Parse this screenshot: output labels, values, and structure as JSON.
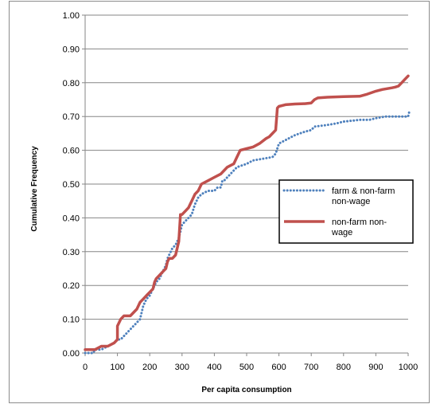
{
  "chart_data": {
    "type": "line",
    "title": "",
    "xlabel": "Per capita consumption",
    "ylabel": "Cumulative Frequency",
    "xlim": [
      0,
      1000
    ],
    "ylim": [
      0,
      1
    ],
    "x_ticks": [
      "0",
      "100",
      "200",
      "300",
      "400",
      "500",
      "600",
      "700",
      "800",
      "900",
      "1000"
    ],
    "y_ticks": [
      "0.00",
      "0.10",
      "0.20",
      "0.30",
      "0.40",
      "0.50",
      "0.60",
      "0.70",
      "0.80",
      "0.90",
      "1.00"
    ],
    "grid": "horizontal",
    "legend_position": "right",
    "series": [
      {
        "name": "farm & non-farm non-wage",
        "color": "#4f81bd",
        "style": "dotted",
        "points": [
          [
            0,
            0.0
          ],
          [
            25,
            0.0
          ],
          [
            30,
            0.01
          ],
          [
            50,
            0.01
          ],
          [
            70,
            0.02
          ],
          [
            90,
            0.03
          ],
          [
            100,
            0.04
          ],
          [
            110,
            0.04
          ],
          [
            120,
            0.05
          ],
          [
            140,
            0.07
          ],
          [
            160,
            0.09
          ],
          [
            170,
            0.1
          ],
          [
            180,
            0.14
          ],
          [
            190,
            0.16
          ],
          [
            200,
            0.17
          ],
          [
            210,
            0.19
          ],
          [
            220,
            0.21
          ],
          [
            230,
            0.22
          ],
          [
            240,
            0.24
          ],
          [
            250,
            0.26
          ],
          [
            255,
            0.28
          ],
          [
            260,
            0.29
          ],
          [
            270,
            0.31
          ],
          [
            280,
            0.32
          ],
          [
            290,
            0.34
          ],
          [
            295,
            0.36
          ],
          [
            300,
            0.38
          ],
          [
            310,
            0.39
          ],
          [
            320,
            0.4
          ],
          [
            330,
            0.41
          ],
          [
            340,
            0.44
          ],
          [
            350,
            0.46
          ],
          [
            360,
            0.47
          ],
          [
            380,
            0.48
          ],
          [
            400,
            0.48
          ],
          [
            410,
            0.49
          ],
          [
            420,
            0.49
          ],
          [
            425,
            0.51
          ],
          [
            430,
            0.51
          ],
          [
            450,
            0.53
          ],
          [
            470,
            0.55
          ],
          [
            500,
            0.56
          ],
          [
            520,
            0.57
          ],
          [
            550,
            0.575
          ],
          [
            580,
            0.58
          ],
          [
            590,
            0.59
          ],
          [
            600,
            0.62
          ],
          [
            620,
            0.63
          ],
          [
            650,
            0.645
          ],
          [
            680,
            0.655
          ],
          [
            700,
            0.66
          ],
          [
            710,
            0.67
          ],
          [
            750,
            0.675
          ],
          [
            780,
            0.68
          ],
          [
            800,
            0.685
          ],
          [
            850,
            0.69
          ],
          [
            880,
            0.69
          ],
          [
            900,
            0.695
          ],
          [
            930,
            0.7
          ],
          [
            950,
            0.7
          ],
          [
            1000,
            0.7
          ],
          [
            1005,
            0.72
          ]
        ]
      },
      {
        "name": "non-farm non-wage",
        "color": "#c0504d",
        "style": "solid",
        "points": [
          [
            0,
            0.01
          ],
          [
            30,
            0.01
          ],
          [
            50,
            0.02
          ],
          [
            70,
            0.02
          ],
          [
            90,
            0.03
          ],
          [
            100,
            0.04
          ],
          [
            100,
            0.08
          ],
          [
            110,
            0.1
          ],
          [
            120,
            0.11
          ],
          [
            140,
            0.11
          ],
          [
            160,
            0.13
          ],
          [
            170,
            0.15
          ],
          [
            180,
            0.16
          ],
          [
            190,
            0.17
          ],
          [
            200,
            0.18
          ],
          [
            210,
            0.19
          ],
          [
            215,
            0.21
          ],
          [
            220,
            0.22
          ],
          [
            230,
            0.23
          ],
          [
            240,
            0.24
          ],
          [
            250,
            0.25
          ],
          [
            255,
            0.27
          ],
          [
            260,
            0.28
          ],
          [
            270,
            0.28
          ],
          [
            280,
            0.29
          ],
          [
            290,
            0.33
          ],
          [
            295,
            0.41
          ],
          [
            300,
            0.41
          ],
          [
            310,
            0.42
          ],
          [
            320,
            0.43
          ],
          [
            330,
            0.45
          ],
          [
            340,
            0.47
          ],
          [
            350,
            0.48
          ],
          [
            360,
            0.5
          ],
          [
            380,
            0.51
          ],
          [
            400,
            0.52
          ],
          [
            420,
            0.53
          ],
          [
            430,
            0.54
          ],
          [
            440,
            0.55
          ],
          [
            450,
            0.555
          ],
          [
            460,
            0.56
          ],
          [
            470,
            0.58
          ],
          [
            480,
            0.6
          ],
          [
            500,
            0.605
          ],
          [
            520,
            0.61
          ],
          [
            540,
            0.62
          ],
          [
            560,
            0.635
          ],
          [
            570,
            0.64
          ],
          [
            580,
            0.65
          ],
          [
            590,
            0.66
          ],
          [
            595,
            0.725
          ],
          [
            600,
            0.73
          ],
          [
            620,
            0.735
          ],
          [
            650,
            0.737
          ],
          [
            680,
            0.738
          ],
          [
            700,
            0.74
          ],
          [
            710,
            0.75
          ],
          [
            720,
            0.755
          ],
          [
            750,
            0.757
          ],
          [
            800,
            0.759
          ],
          [
            850,
            0.76
          ],
          [
            870,
            0.765
          ],
          [
            900,
            0.775
          ],
          [
            920,
            0.78
          ],
          [
            950,
            0.785
          ],
          [
            960,
            0.787
          ],
          [
            970,
            0.79
          ],
          [
            980,
            0.8
          ],
          [
            990,
            0.81
          ],
          [
            1000,
            0.82
          ]
        ]
      }
    ],
    "legend": [
      {
        "lines": [
          "farm & non-farm",
          "non-wage"
        ],
        "series": 0
      },
      {
        "lines": [
          "non-farm non-",
          "wage"
        ],
        "series": 1
      }
    ]
  }
}
